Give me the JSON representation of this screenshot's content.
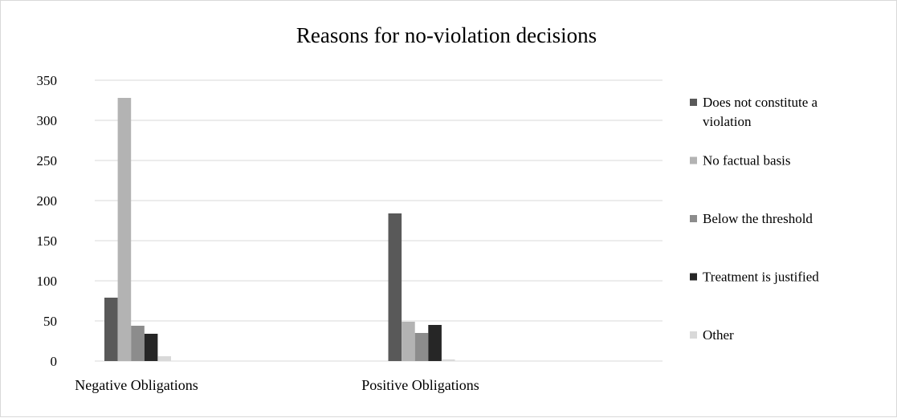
{
  "chart_data": {
    "type": "bar",
    "title": "Reasons for no-violation decisions",
    "xlabel": "",
    "ylabel": "",
    "categories": [
      "Negative Obligations",
      "Positive Obligations"
    ],
    "ylim": [
      0,
      350
    ],
    "yticks": [
      0,
      50,
      100,
      150,
      200,
      250,
      300,
      350
    ],
    "grid": true,
    "legend_position": "right",
    "series": [
      {
        "name": "Does not constitute a violation",
        "legend_lines": [
          "Does not constitute a",
          "violation"
        ],
        "color": "#595959",
        "values": [
          79,
          184
        ]
      },
      {
        "name": "No factual basis",
        "legend_lines": [
          "No factual basis"
        ],
        "color": "#b3b3b3",
        "values": [
          328,
          49
        ]
      },
      {
        "name": "Below the threshold",
        "legend_lines": [
          "Below the threshold"
        ],
        "color": "#8c8c8c",
        "values": [
          44,
          35
        ]
      },
      {
        "name": "Treatment is justified",
        "legend_lines": [
          "Treatment is justified"
        ],
        "color": "#262626",
        "values": [
          34,
          45
        ]
      },
      {
        "name": "Other",
        "legend_lines": [
          "Other"
        ],
        "color": "#d9d9d9",
        "values": [
          6,
          2
        ]
      }
    ]
  }
}
